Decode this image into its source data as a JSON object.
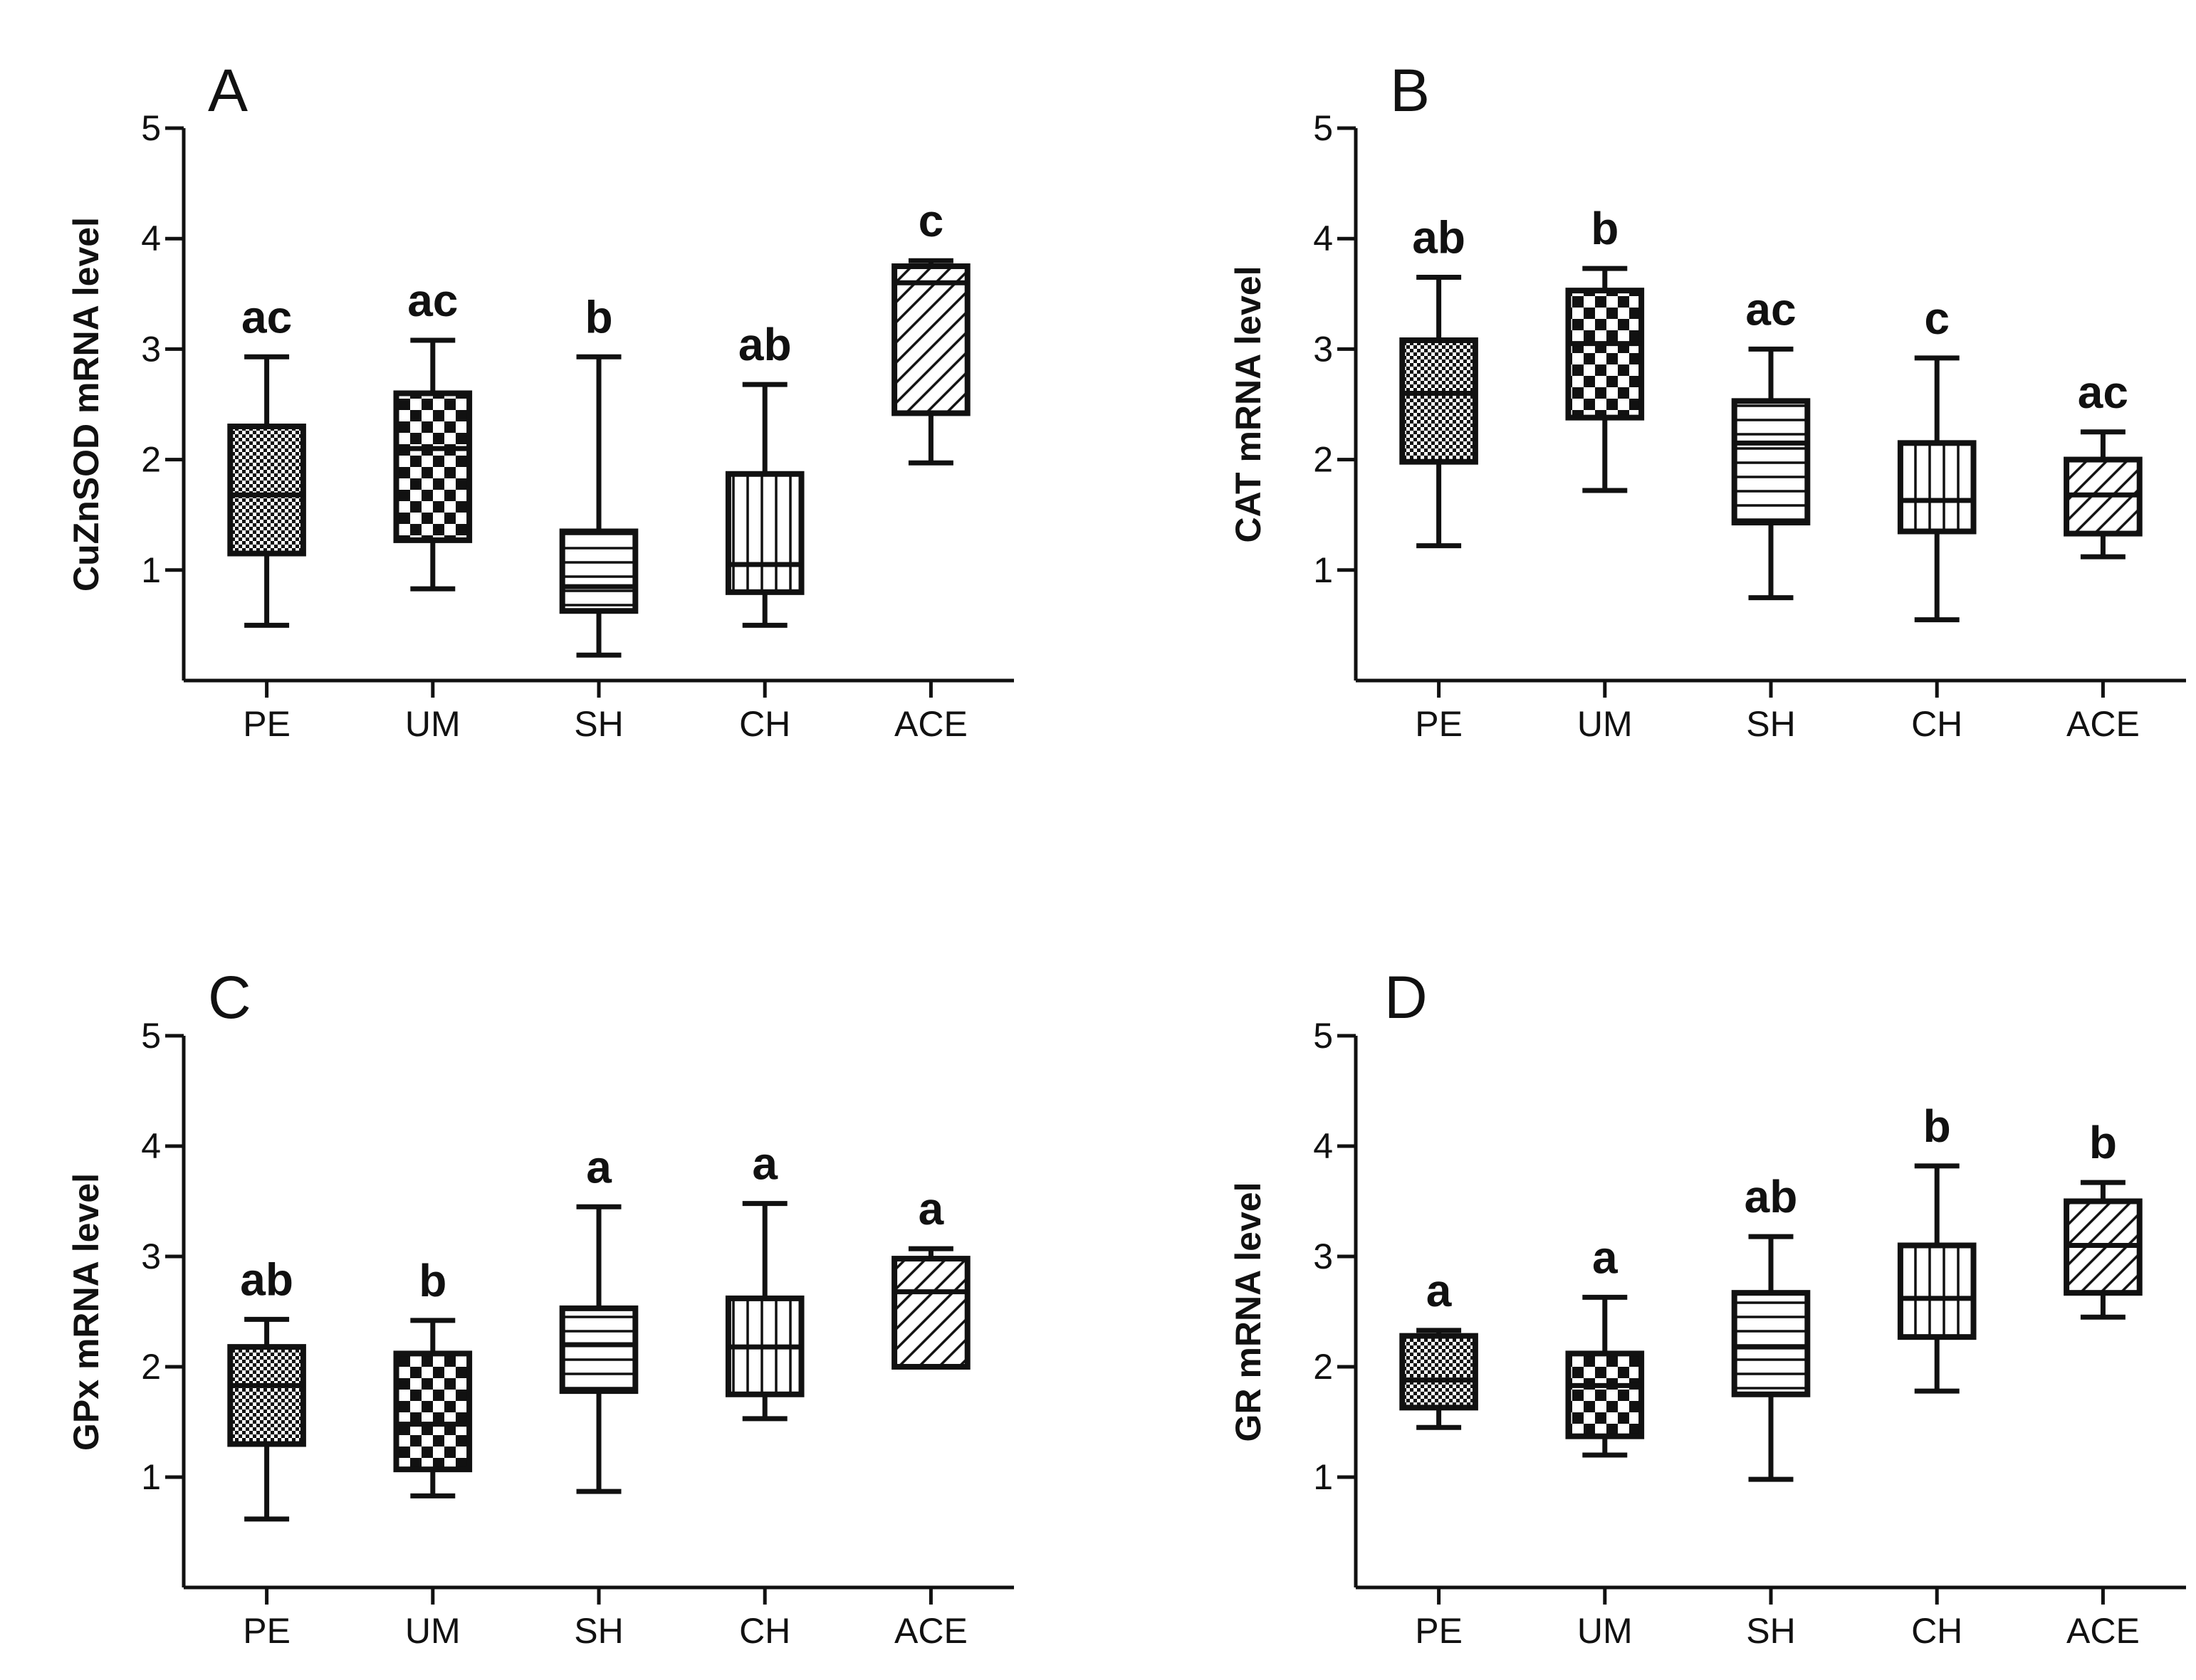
{
  "chart_data": [
    {
      "type": "box",
      "panel": "A",
      "ylabel": "CuZnSOD mRNA level",
      "ylim": [
        0,
        5
      ],
      "yticks": [
        1,
        2,
        3,
        4,
        5
      ],
      "categories": [
        "PE",
        "UM",
        "SH",
        "CH",
        "ACE"
      ],
      "fill_patterns": [
        "fine-check",
        "coarse-check",
        "horizontal",
        "vertical",
        "diagonal"
      ],
      "boxes": [
        {
          "min": 0.5,
          "q1": 1.15,
          "median": 1.68,
          "q3": 2.3,
          "max": 2.93
        },
        {
          "min": 0.83,
          "q1": 1.27,
          "median": 2.1,
          "q3": 2.6,
          "max": 3.08
        },
        {
          "min": 0.23,
          "q1": 0.63,
          "median": 0.85,
          "q3": 1.35,
          "max": 2.93
        },
        {
          "min": 0.5,
          "q1": 0.8,
          "median": 1.05,
          "q3": 1.87,
          "max": 2.68
        },
        {
          "min": 1.97,
          "q1": 2.42,
          "median": 3.6,
          "q3": 3.75,
          "max": 3.8
        }
      ],
      "significance": [
        "ac",
        "ac",
        "b",
        "ab",
        "c"
      ]
    },
    {
      "type": "box",
      "panel": "B",
      "ylabel": "CAT mRNA level",
      "ylim": [
        0,
        5
      ],
      "yticks": [
        1,
        2,
        3,
        4,
        5
      ],
      "categories": [
        "PE",
        "UM",
        "SH",
        "CH",
        "ACE"
      ],
      "fill_patterns": [
        "fine-check",
        "coarse-check",
        "horizontal",
        "vertical",
        "diagonal"
      ],
      "boxes": [
        {
          "min": 1.22,
          "q1": 1.98,
          "median": 2.6,
          "q3": 3.08,
          "max": 3.65
        },
        {
          "min": 1.72,
          "q1": 2.38,
          "median": 3.05,
          "q3": 3.53,
          "max": 3.73
        },
        {
          "min": 0.75,
          "q1": 1.43,
          "median": 2.15,
          "q3": 2.53,
          "max": 3.0
        },
        {
          "min": 0.55,
          "q1": 1.35,
          "median": 1.63,
          "q3": 2.15,
          "max": 2.92
        },
        {
          "min": 1.12,
          "q1": 1.33,
          "median": 1.68,
          "q3": 2.0,
          "max": 2.25
        }
      ],
      "significance": [
        "ab",
        "b",
        "ac",
        "c",
        "ac"
      ]
    },
    {
      "type": "box",
      "panel": "C",
      "ylabel": "GPx mRNA level",
      "ylim": [
        0,
        5
      ],
      "yticks": [
        1,
        2,
        3,
        4,
        5
      ],
      "categories": [
        "PE",
        "UM",
        "SH",
        "CH",
        "ACE"
      ],
      "fill_patterns": [
        "fine-check",
        "coarse-check",
        "horizontal",
        "vertical",
        "diagonal"
      ],
      "boxes": [
        {
          "min": 0.62,
          "q1": 1.3,
          "median": 1.83,
          "q3": 2.18,
          "max": 2.43
        },
        {
          "min": 0.83,
          "q1": 1.07,
          "median": 1.48,
          "q3": 2.12,
          "max": 2.42
        },
        {
          "min": 0.87,
          "q1": 1.78,
          "median": 2.2,
          "q3": 2.53,
          "max": 3.45
        },
        {
          "min": 1.53,
          "q1": 1.75,
          "median": 2.18,
          "q3": 2.62,
          "max": 3.48
        },
        {
          "min": 2.0,
          "q1": 2.0,
          "median": 2.68,
          "q3": 2.98,
          "max": 3.07
        }
      ],
      "significance": [
        "ab",
        "b",
        "a",
        "a",
        "a"
      ]
    },
    {
      "type": "box",
      "panel": "D",
      "ylabel": "GR mRNA level",
      "ylim": [
        0,
        5
      ],
      "yticks": [
        1,
        2,
        3,
        4,
        5
      ],
      "categories": [
        "PE",
        "UM",
        "SH",
        "CH",
        "ACE"
      ],
      "fill_patterns": [
        "fine-check",
        "coarse-check",
        "horizontal",
        "vertical",
        "diagonal"
      ],
      "boxes": [
        {
          "min": 1.45,
          "q1": 1.63,
          "median": 1.88,
          "q3": 2.28,
          "max": 2.33
        },
        {
          "min": 1.2,
          "q1": 1.37,
          "median": 1.83,
          "q3": 2.12,
          "max": 2.63
        },
        {
          "min": 0.98,
          "q1": 1.75,
          "median": 2.18,
          "q3": 2.67,
          "max": 3.18
        },
        {
          "min": 1.78,
          "q1": 2.27,
          "median": 2.62,
          "q3": 3.1,
          "max": 3.82
        },
        {
          "min": 2.45,
          "q1": 2.67,
          "median": 3.1,
          "q3": 3.5,
          "max": 3.67
        }
      ],
      "significance": [
        "a",
        "a",
        "ab",
        "b",
        "b"
      ]
    }
  ]
}
